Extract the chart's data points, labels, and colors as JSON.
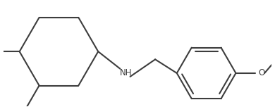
{
  "background_color": "#ffffff",
  "line_color": "#3d3d3d",
  "bond_width": 1.5,
  "figsize": [
    3.9,
    1.52
  ],
  "dpi": 100,
  "nh_label": "NH",
  "o_label": "O",
  "font_size": 8.5
}
